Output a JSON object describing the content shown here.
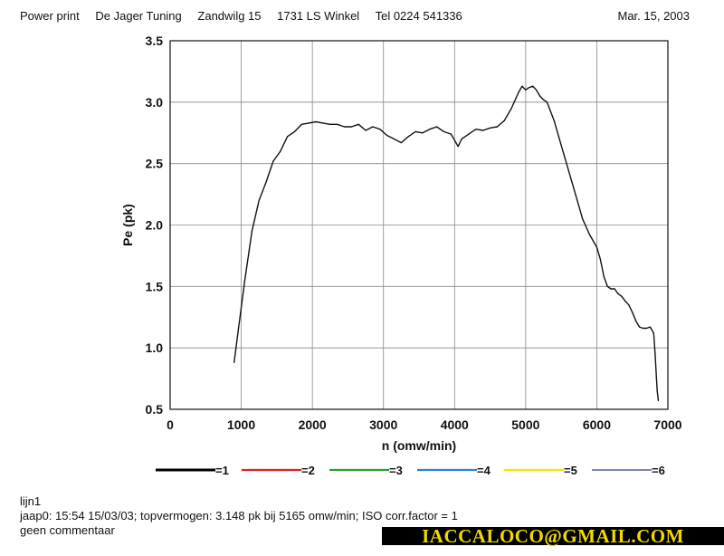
{
  "header": {
    "title": "Power print",
    "company": "De Jager Tuning",
    "address": "Zandwilg 15",
    "city": "1731 LS Winkel",
    "phone": "Tel 0224 541336",
    "date": "Mar. 15, 2003"
  },
  "colors": {
    "grid": "#888888",
    "frame": "#111111",
    "curve": "#111111"
  },
  "chart_data": {
    "type": "line",
    "xlabel": "n (omw/min)",
    "ylabel": "Pe (pk)",
    "xlim": [
      0,
      7000
    ],
    "ylim": [
      0.5,
      3.5
    ],
    "x_ticks": [
      "0",
      "1000",
      "2000",
      "3000",
      "4000",
      "5000",
      "6000",
      "7000"
    ],
    "y_ticks": [
      "0.5",
      "1.0",
      "1.5",
      "2.0",
      "2.5",
      "3.0",
      "3.5"
    ],
    "grid": true,
    "legend_position": "bottom",
    "legend": [
      {
        "label": "=1",
        "color": "#000000"
      },
      {
        "label": "=2",
        "color": "#e02020"
      },
      {
        "label": "=3",
        "color": "#2ca02c"
      },
      {
        "label": "=4",
        "color": "#2f7fd8"
      },
      {
        "label": "=5",
        "color": "#f2e600"
      },
      {
        "label": "=6",
        "color": "#2a3a8a"
      }
    ],
    "series": [
      {
        "x": [
          900,
          960,
          1050,
          1150,
          1250,
          1350,
          1450,
          1550,
          1650,
          1750,
          1850,
          1950,
          2050,
          2150,
          2250,
          2350,
          2450,
          2550,
          2650,
          2750,
          2850,
          2950,
          3050,
          3150,
          3250,
          3350,
          3450,
          3550,
          3650,
          3750,
          3850,
          3950,
          4050,
          4100,
          4200,
          4300,
          4400,
          4500,
          4600,
          4700,
          4800,
          4900,
          4950,
          5000,
          5050,
          5100,
          5150,
          5200,
          5250,
          5300,
          5400,
          5500,
          5600,
          5700,
          5800,
          5900,
          6000,
          6050,
          6100,
          6150,
          6200,
          6250,
          6300,
          6350,
          6400,
          6450,
          6500,
          6550,
          6600,
          6650,
          6700,
          6750,
          6800,
          6820,
          6840,
          6850,
          6860,
          6865
        ],
        "y": [
          0.88,
          1.15,
          1.55,
          1.95,
          2.2,
          2.35,
          2.52,
          2.6,
          2.72,
          2.76,
          2.82,
          2.83,
          2.84,
          2.83,
          2.82,
          2.82,
          2.8,
          2.8,
          2.82,
          2.77,
          2.8,
          2.78,
          2.73,
          2.7,
          2.67,
          2.72,
          2.76,
          2.75,
          2.78,
          2.8,
          2.76,
          2.74,
          2.64,
          2.7,
          2.74,
          2.78,
          2.77,
          2.79,
          2.8,
          2.85,
          2.95,
          3.08,
          3.13,
          3.1,
          3.12,
          3.13,
          3.1,
          3.05,
          3.02,
          3.0,
          2.85,
          2.65,
          2.45,
          2.25,
          2.05,
          1.92,
          1.82,
          1.72,
          1.58,
          1.5,
          1.48,
          1.48,
          1.44,
          1.42,
          1.38,
          1.35,
          1.29,
          1.22,
          1.17,
          1.16,
          1.16,
          1.17,
          1.12,
          0.95,
          0.75,
          0.65,
          0.6,
          0.57
        ]
      }
    ]
  },
  "footer": {
    "line1": "lijn1",
    "line2": "jaap0: 15:54 15/03/03;  topvermogen: 3.148 pk bij 5165 omw/min;  ISO corr.factor = 1",
    "line3": "geen commentaar"
  },
  "watermark": "IACCALOCO@GMAIL.COM"
}
